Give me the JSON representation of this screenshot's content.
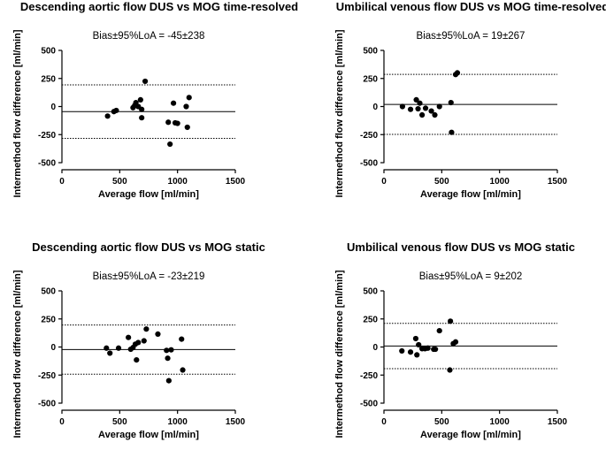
{
  "chart_data": [
    {
      "type": "scatter",
      "title": "Descending aortic flow DUS vs MOG time-resolved",
      "annotation": "Bias±95%LoA = -45±238",
      "xlabel": "Average flow [ml/min]",
      "ylabel": "Intermethod flow difference [ml/min]",
      "xlim": [
        0,
        1500
      ],
      "ylim": [
        -500,
        500
      ],
      "xticks": [
        "0",
        "500",
        "1000",
        "1500"
      ],
      "yticks": [
        "500",
        "250",
        "0",
        "-250",
        "-500"
      ],
      "bias": -45,
      "loa": [
        193,
        -283
      ],
      "points": [
        [
          395,
          -85
        ],
        [
          450,
          -45
        ],
        [
          470,
          -35
        ],
        [
          615,
          -10
        ],
        [
          630,
          10
        ],
        [
          640,
          35
        ],
        [
          660,
          0
        ],
        [
          680,
          60
        ],
        [
          690,
          -100
        ],
        [
          690,
          -25
        ],
        [
          720,
          225
        ],
        [
          920,
          -140
        ],
        [
          935,
          -335
        ],
        [
          965,
          30
        ],
        [
          980,
          -145
        ],
        [
          1000,
          -150
        ],
        [
          1075,
          0
        ],
        [
          1085,
          -185
        ],
        [
          1100,
          80
        ]
      ]
    },
    {
      "type": "scatter",
      "title": "Umbilical venous flow DUS vs MOG time-resolved",
      "annotation": "Bias±95%LoA = 19±267",
      "xlabel": "Average flow [ml/min]",
      "ylabel": "Intermethod flow difference [ml/min]",
      "xlim": [
        0,
        1500
      ],
      "ylim": [
        -500,
        500
      ],
      "xticks": [
        "0",
        "500",
        "1000",
        "1500"
      ],
      "yticks": [
        "500",
        "250",
        "0",
        "-250",
        "-500"
      ],
      "bias": 19,
      "loa": [
        286,
        -248
      ],
      "points": [
        [
          160,
          0
        ],
        [
          230,
          -25
        ],
        [
          280,
          60
        ],
        [
          295,
          -20
        ],
        [
          310,
          30
        ],
        [
          330,
          -75
        ],
        [
          360,
          -15
        ],
        [
          410,
          -40
        ],
        [
          440,
          -75
        ],
        [
          480,
          0
        ],
        [
          580,
          35
        ],
        [
          585,
          -230
        ],
        [
          620,
          285
        ],
        [
          635,
          300
        ]
      ]
    },
    {
      "type": "scatter",
      "title": "Descending aortic flow DUS vs MOG static",
      "annotation": "Bias±95%LoA = -23±219",
      "xlabel": "Average flow [ml/min]",
      "ylabel": "Intermethod flow difference [ml/min]",
      "xlim": [
        0,
        1500
      ],
      "ylim": [
        -500,
        500
      ],
      "xticks": [
        "0",
        "500",
        "1000",
        "1500"
      ],
      "yticks": [
        "500",
        "250",
        "0",
        "-250",
        "-500"
      ],
      "bias": -23,
      "loa": [
        196,
        -242
      ],
      "points": [
        [
          385,
          -10
        ],
        [
          415,
          -55
        ],
        [
          490,
          -10
        ],
        [
          575,
          85
        ],
        [
          595,
          -20
        ],
        [
          615,
          -5
        ],
        [
          635,
          25
        ],
        [
          645,
          -115
        ],
        [
          660,
          40
        ],
        [
          710,
          55
        ],
        [
          730,
          160
        ],
        [
          830,
          115
        ],
        [
          905,
          -30
        ],
        [
          915,
          -100
        ],
        [
          925,
          -300
        ],
        [
          945,
          -25
        ],
        [
          1035,
          70
        ],
        [
          1045,
          -205
        ]
      ]
    },
    {
      "type": "scatter",
      "title": "Umbilical venous flow DUS vs MOG static",
      "annotation": "Bias±95%LoA = 9±202",
      "xlabel": "Average flow [ml/min]",
      "ylabel": "Intermethod flow difference [ml/min]",
      "xlim": [
        0,
        1500
      ],
      "ylim": [
        -500,
        500
      ],
      "xticks": [
        "0",
        "500",
        "1000",
        "1500"
      ],
      "yticks": [
        "500",
        "250",
        "0",
        "-250",
        "-500"
      ],
      "bias": 9,
      "loa": [
        211,
        -193
      ],
      "points": [
        [
          155,
          -35
        ],
        [
          230,
          -45
        ],
        [
          275,
          75
        ],
        [
          285,
          -70
        ],
        [
          300,
          20
        ],
        [
          330,
          -15
        ],
        [
          355,
          -15
        ],
        [
          380,
          -10
        ],
        [
          430,
          -20
        ],
        [
          445,
          -20
        ],
        [
          480,
          145
        ],
        [
          570,
          -205
        ],
        [
          575,
          230
        ],
        [
          600,
          30
        ],
        [
          620,
          45
        ]
      ]
    }
  ]
}
